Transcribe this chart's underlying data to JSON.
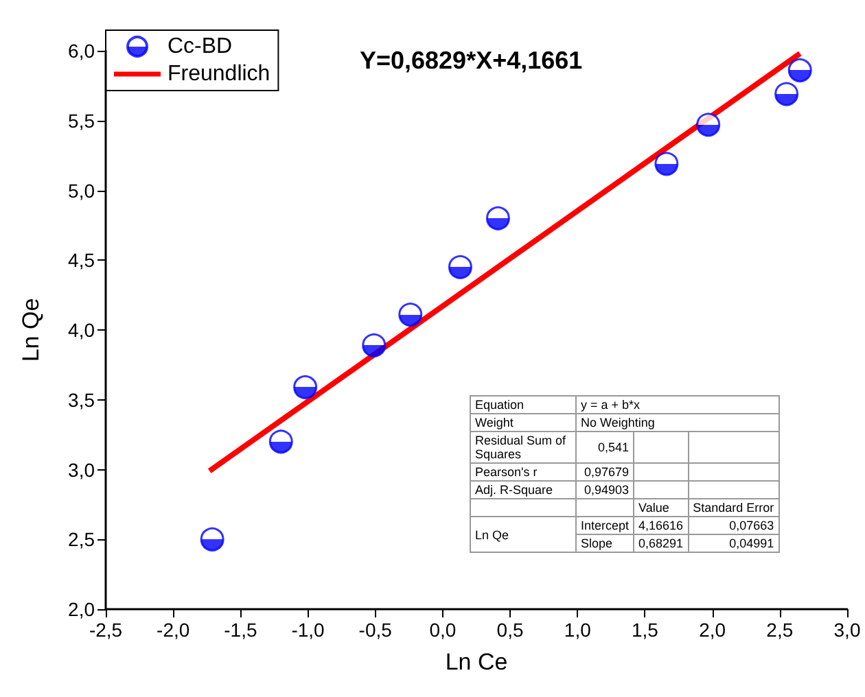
{
  "chart_data": {
    "type": "scatter",
    "xlabel": "Ln Ce",
    "ylabel": "Ln Qe",
    "annotations": [
      "Y=0,6829*X+4,1661",
      "Equation",
      "y = a + b*x",
      "Weight",
      "No Weighting",
      "Residual Sum of Squares",
      "0,541",
      "Pearson's r",
      "0,97679",
      "Adj. R-Square",
      "0,94903",
      "Value",
      "Standard Error",
      "Ln Qe",
      "Intercept",
      "4,16616",
      "0,07663",
      "Slope",
      "0,68291",
      "0,04991"
    ],
    "series": [
      {
        "name": "Cc-BD",
        "color": "#0000ff",
        "marker": "circle",
        "x": [
          -1.71,
          -1.2,
          -1.02,
          -0.51,
          -0.24,
          0.13,
          0.41,
          1.66,
          1.97,
          2.55,
          2.65
        ],
        "values": [
          2.5,
          3.2,
          3.59,
          3.89,
          4.11,
          4.45,
          4.8,
          5.19,
          5.47,
          5.69,
          5.86
        ]
      },
      {
        "name": "Freundlich",
        "type": "line",
        "color": "#ff0000",
        "marker": "none",
        "line_style": "solid",
        "x": [
          -1.73,
          2.65
        ],
        "values": [
          2.99,
          5.98
        ]
      }
    ],
    "xlim": [
      -2.5,
      3.0
    ],
    "xticks": [
      {
        "value": -2.5,
        "label": "-2,5"
      },
      {
        "value": -2,
        "label": "-2,0"
      },
      {
        "value": -1.5,
        "label": "-1,5"
      },
      {
        "value": -1,
        "label": "-1,0"
      },
      {
        "value": -0.5,
        "label": "-0,5"
      },
      {
        "value": 0,
        "label": "0,0"
      },
      {
        "value": 0.5,
        "label": "0,5"
      },
      {
        "value": 1,
        "label": "1,0"
      },
      {
        "value": 1.5,
        "label": "1,5"
      },
      {
        "value": 2,
        "label": "2,0"
      },
      {
        "value": 2.5,
        "label": "2,5"
      },
      {
        "value": 3,
        "label": "3,0"
      }
    ],
    "ylim": [
      2.0,
      6.0
    ],
    "yticks": [
      {
        "value": 2,
        "label": "2,0"
      },
      {
        "value": 2.5,
        "label": "2,5"
      },
      {
        "value": 3,
        "label": "3,0"
      },
      {
        "value": 3.5,
        "label": "3,5"
      },
      {
        "value": 4,
        "label": "4,0"
      },
      {
        "value": 4.5,
        "label": "4,5"
      },
      {
        "value": 5,
        "label": "5,0"
      },
      {
        "value": 5.5,
        "label": "5,5"
      },
      {
        "value": 6,
        "label": "6,0"
      }
    ],
    "grid": false,
    "legend": "top left"
  }
}
